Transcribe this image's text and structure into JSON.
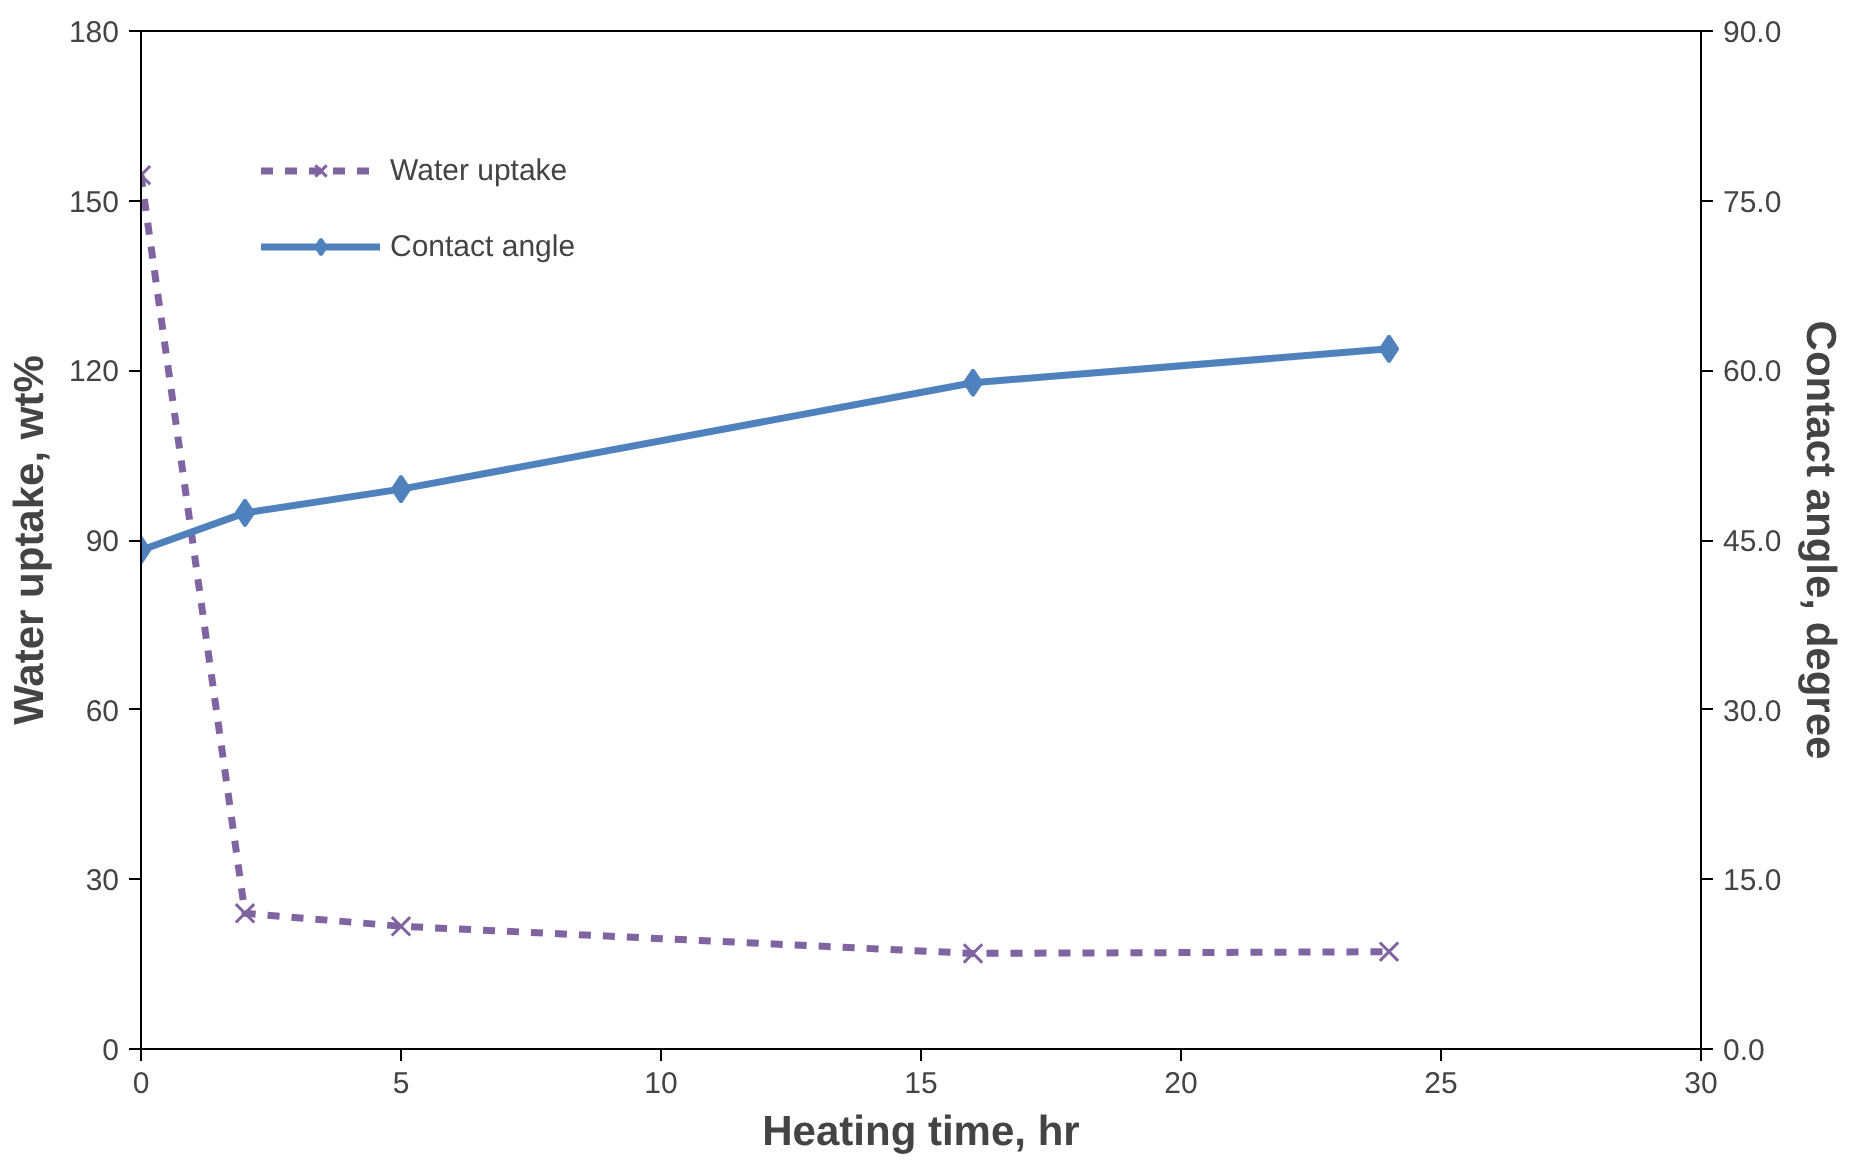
{
  "chart_data": {
    "type": "line",
    "xlabel": "Heating time, hr",
    "ylabel": "Water uptake, wt%",
    "y2label": "Contact angle, degree",
    "xlim": [
      0,
      30
    ],
    "xticks": [
      0,
      5,
      10,
      15,
      20,
      25,
      30
    ],
    "ylim": [
      0,
      180
    ],
    "yticks": [
      0,
      30,
      60,
      90,
      120,
      150,
      180
    ],
    "y2lim": [
      0,
      90
    ],
    "y2ticks": [
      {
        "value": 0,
        "label": "0.0"
      },
      {
        "value": 15,
        "label": "15.0"
      },
      {
        "value": 30,
        "label": "30.0"
      },
      {
        "value": 45,
        "label": "45.0"
      },
      {
        "value": 60,
        "label": "60.0"
      },
      {
        "value": 75,
        "label": "75.0"
      },
      {
        "value": 90,
        "label": "90.0"
      }
    ],
    "x": [
      0,
      2,
      5,
      16,
      24
    ],
    "series": [
      {
        "name": "Water uptake",
        "color": "#8064a2",
        "values": [
          154.5,
          24,
          21.7,
          16.9,
          17.2
        ],
        "marker": "cross",
        "line_style": "dashed"
      },
      {
        "name": "Contact angle",
        "color": "#4f81bd",
        "values": [
          44.1,
          47.4,
          49.5,
          58.9,
          61.9
        ],
        "marker": "diamond",
        "line_style": "solid",
        "axis": "y2"
      }
    ],
    "grid": false,
    "legend": "top left"
  }
}
